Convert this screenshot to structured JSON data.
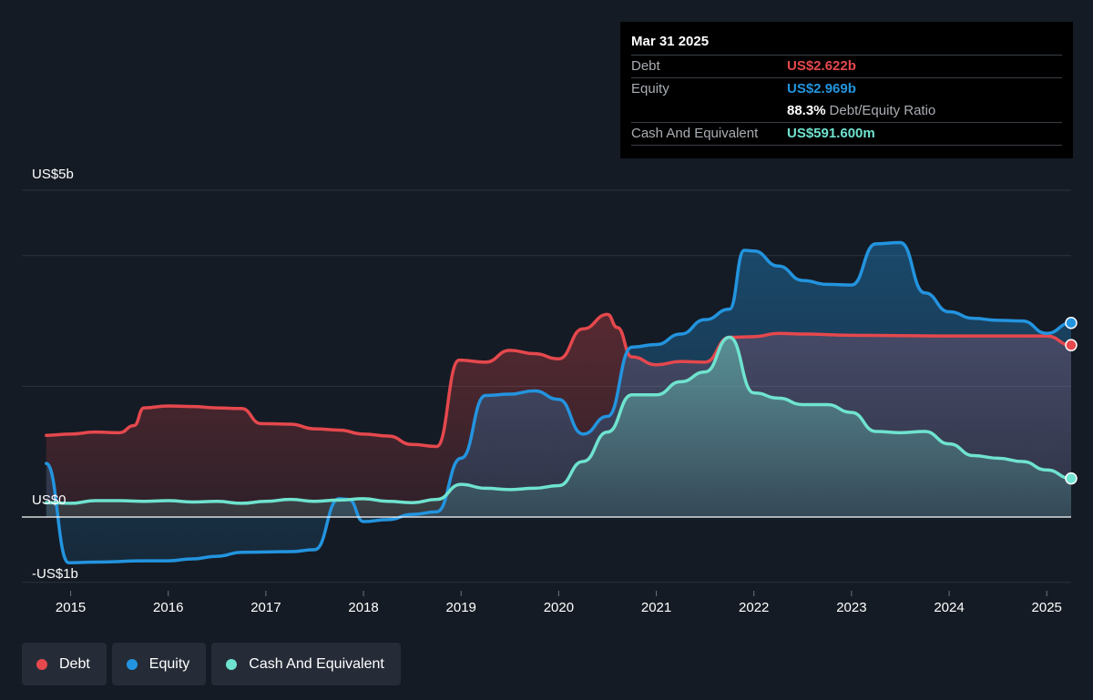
{
  "tooltip": {
    "date": "Mar 31 2025",
    "debt_label": "Debt",
    "debt_value": "US$2.622b",
    "equity_label": "Equity",
    "equity_value": "US$2.969b",
    "ratio_value": "88.3%",
    "ratio_label": "Debt/Equity Ratio",
    "cash_label": "Cash And Equivalent",
    "cash_value": "US$591.600m"
  },
  "colors": {
    "background": "#151b24",
    "debt": "#e5484d",
    "equity": "#2394df",
    "cash": "#6fe3cf",
    "tooltip_bg": "#000000",
    "legend_bg": "#252c37"
  },
  "legend": [
    {
      "label": "Debt",
      "color": "#e5484d"
    },
    {
      "label": "Equity",
      "color": "#2394df"
    },
    {
      "label": "Cash And Equivalent",
      "color": "#6fe3cf"
    }
  ],
  "chart_data": {
    "type": "area",
    "ylabels": [
      "US$5b",
      "US$0",
      "-US$1b"
    ],
    "ylim": [
      -1,
      5
    ],
    "xlim": [
      2014.5,
      2025.25
    ],
    "x_ticks": [
      2015,
      2016,
      2017,
      2018,
      2019,
      2020,
      2021,
      2022,
      2023,
      2024,
      2025
    ],
    "x_tick_labels": [
      "2015",
      "2016",
      "2017",
      "2018",
      "2019",
      "2020",
      "2021",
      "2022",
      "2023",
      "2024",
      "2025"
    ],
    "gridlines": [
      5,
      4,
      2,
      0,
      -1
    ],
    "legend_position": "bottom-left",
    "series": [
      {
        "name": "Debt",
        "points": [
          [
            2014.75,
            1.25
          ],
          [
            2015.0,
            1.27
          ],
          [
            2015.25,
            1.3
          ],
          [
            2015.5,
            1.29
          ],
          [
            2015.65,
            1.4
          ],
          [
            2015.75,
            1.67
          ],
          [
            2016.0,
            1.7
          ],
          [
            2016.25,
            1.69
          ],
          [
            2016.5,
            1.67
          ],
          [
            2016.75,
            1.66
          ],
          [
            2016.95,
            1.43
          ],
          [
            2017.25,
            1.42
          ],
          [
            2017.5,
            1.35
          ],
          [
            2017.75,
            1.33
          ],
          [
            2018.0,
            1.27
          ],
          [
            2018.25,
            1.24
          ],
          [
            2018.5,
            1.11
          ],
          [
            2018.75,
            1.08
          ],
          [
            2018.98,
            2.4
          ],
          [
            2019.25,
            2.37
          ],
          [
            2019.5,
            2.55
          ],
          [
            2019.75,
            2.5
          ],
          [
            2020.0,
            2.42
          ],
          [
            2020.25,
            2.88
          ],
          [
            2020.5,
            3.1
          ],
          [
            2020.6,
            2.9
          ],
          [
            2020.75,
            2.45
          ],
          [
            2021.0,
            2.33
          ],
          [
            2021.25,
            2.38
          ],
          [
            2021.5,
            2.37
          ],
          [
            2021.75,
            2.75
          ],
          [
            2022.0,
            2.76
          ],
          [
            2022.25,
            2.81
          ],
          [
            2022.5,
            2.8
          ],
          [
            2023.0,
            2.78
          ],
          [
            2024.0,
            2.77
          ],
          [
            2025.0,
            2.77
          ],
          [
            2025.25,
            2.63
          ]
        ]
      },
      {
        "name": "Equity",
        "points": [
          [
            2014.75,
            0.82
          ],
          [
            2014.98,
            -0.7
          ],
          [
            2015.25,
            -0.69
          ],
          [
            2015.75,
            -0.67
          ],
          [
            2016.0,
            -0.67
          ],
          [
            2016.25,
            -0.64
          ],
          [
            2016.5,
            -0.6
          ],
          [
            2016.75,
            -0.54
          ],
          [
            2017.25,
            -0.53
          ],
          [
            2017.5,
            -0.5
          ],
          [
            2017.75,
            0.28
          ],
          [
            2017.85,
            0.27
          ],
          [
            2018.0,
            -0.07
          ],
          [
            2018.25,
            -0.04
          ],
          [
            2018.5,
            0.04
          ],
          [
            2018.75,
            0.08
          ],
          [
            2019.0,
            0.9
          ],
          [
            2019.25,
            1.86
          ],
          [
            2019.5,
            1.88
          ],
          [
            2019.75,
            1.93
          ],
          [
            2020.0,
            1.8
          ],
          [
            2020.25,
            1.27
          ],
          [
            2020.5,
            1.54
          ],
          [
            2020.75,
            2.6
          ],
          [
            2021.0,
            2.64
          ],
          [
            2021.25,
            2.8
          ],
          [
            2021.5,
            3.02
          ],
          [
            2021.75,
            3.18
          ],
          [
            2021.9,
            4.08
          ],
          [
            2022.0,
            4.07
          ],
          [
            2022.25,
            3.84
          ],
          [
            2022.5,
            3.62
          ],
          [
            2022.75,
            3.56
          ],
          [
            2023.0,
            3.55
          ],
          [
            2023.25,
            4.18
          ],
          [
            2023.5,
            4.2
          ],
          [
            2023.75,
            3.43
          ],
          [
            2024.0,
            3.14
          ],
          [
            2024.25,
            3.04
          ],
          [
            2024.5,
            3.01
          ],
          [
            2024.75,
            3.0
          ],
          [
            2025.0,
            2.81
          ],
          [
            2025.25,
            2.97
          ]
        ]
      },
      {
        "name": "Cash And Equivalent",
        "points": [
          [
            2014.75,
            0.22
          ],
          [
            2015.0,
            0.21
          ],
          [
            2015.25,
            0.25
          ],
          [
            2015.5,
            0.25
          ],
          [
            2015.75,
            0.24
          ],
          [
            2016.0,
            0.25
          ],
          [
            2016.25,
            0.23
          ],
          [
            2016.5,
            0.24
          ],
          [
            2016.75,
            0.21
          ],
          [
            2017.0,
            0.24
          ],
          [
            2017.25,
            0.27
          ],
          [
            2017.5,
            0.24
          ],
          [
            2017.75,
            0.26
          ],
          [
            2018.0,
            0.28
          ],
          [
            2018.25,
            0.24
          ],
          [
            2018.5,
            0.22
          ],
          [
            2018.75,
            0.27
          ],
          [
            2019.0,
            0.5
          ],
          [
            2019.25,
            0.44
          ],
          [
            2019.5,
            0.42
          ],
          [
            2019.75,
            0.44
          ],
          [
            2020.0,
            0.48
          ],
          [
            2020.25,
            0.85
          ],
          [
            2020.5,
            1.3
          ],
          [
            2020.75,
            1.87
          ],
          [
            2021.0,
            1.87
          ],
          [
            2021.25,
            2.07
          ],
          [
            2021.5,
            2.22
          ],
          [
            2021.75,
            2.75
          ],
          [
            2022.0,
            1.9
          ],
          [
            2022.25,
            1.82
          ],
          [
            2022.5,
            1.72
          ],
          [
            2022.75,
            1.72
          ],
          [
            2023.0,
            1.6
          ],
          [
            2023.25,
            1.31
          ],
          [
            2023.5,
            1.29
          ],
          [
            2023.75,
            1.31
          ],
          [
            2024.0,
            1.12
          ],
          [
            2024.25,
            0.94
          ],
          [
            2024.5,
            0.9
          ],
          [
            2024.75,
            0.85
          ],
          [
            2025.0,
            0.72
          ],
          [
            2025.25,
            0.59
          ]
        ]
      }
    ]
  }
}
